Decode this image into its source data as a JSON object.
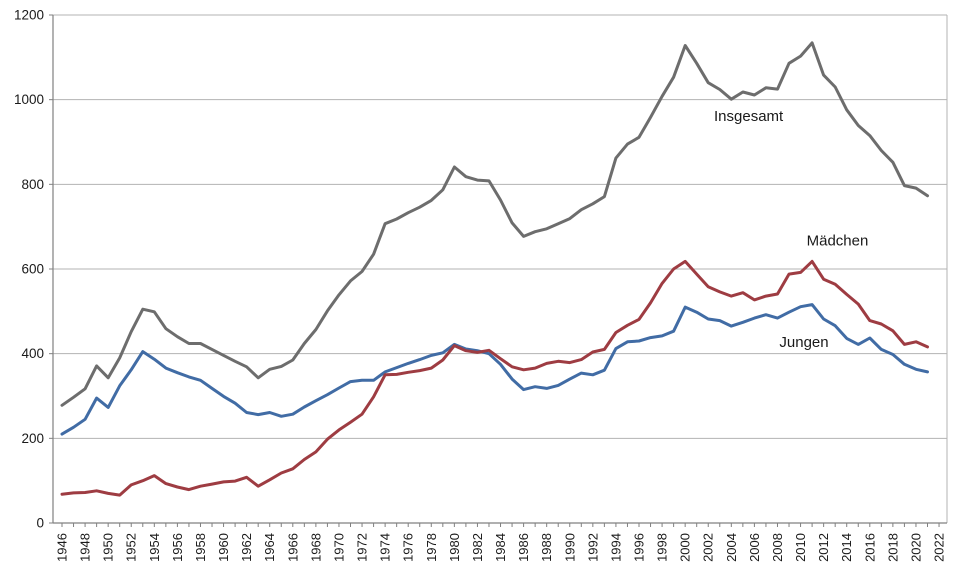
{
  "chart_data": {
    "type": "line",
    "title": "",
    "xlabel": "",
    "ylabel": "",
    "grid": "horizontal",
    "legend_position": "inline-annotations",
    "ylim": [
      0,
      1200
    ],
    "yticks": [
      0,
      200,
      400,
      600,
      800,
      1000,
      1200
    ],
    "xlim": [
      1945.2,
      2022.7
    ],
    "xticks": [
      1946,
      1948,
      1950,
      1952,
      1954,
      1956,
      1958,
      1960,
      1962,
      1964,
      1966,
      1968,
      1970,
      1972,
      1974,
      1976,
      1978,
      1980,
      1982,
      1984,
      1986,
      1988,
      1990,
      1992,
      1994,
      1996,
      1998,
      2000,
      2002,
      2004,
      2006,
      2008,
      2010,
      2012,
      2014,
      2016,
      2018,
      2020,
      2022
    ],
    "x": [
      1946,
      1947,
      1948,
      1949,
      1950,
      1951,
      1952,
      1953,
      1954,
      1955,
      1956,
      1957,
      1958,
      1959,
      1960,
      1961,
      1962,
      1963,
      1964,
      1965,
      1966,
      1967,
      1968,
      1969,
      1970,
      1971,
      1972,
      1973,
      1974,
      1975,
      1976,
      1977,
      1978,
      1979,
      1980,
      1981,
      1982,
      1983,
      1984,
      1985,
      1986,
      1987,
      1988,
      1989,
      1990,
      1991,
      1992,
      1993,
      1994,
      1995,
      1996,
      1997,
      1998,
      1999,
      2000,
      2001,
      2002,
      2003,
      2004,
      2005,
      2006,
      2007,
      2008,
      2009,
      2010,
      2011,
      2012,
      2013,
      2014,
      2015,
      2016,
      2017,
      2018,
      2019,
      2020,
      2021
    ],
    "series": [
      {
        "name": "Insgesamt",
        "color": "#6d6d6d",
        "values": [
          278,
          297,
          317,
          371,
          343,
          390,
          452,
          505,
          499,
          459,
          440,
          424,
          424,
          410,
          396,
          382,
          369,
          343,
          363,
          370,
          385,
          424,
          457,
          501,
          539,
          572,
          594,
          635,
          707,
          718,
          733,
          746,
          762,
          787,
          841,
          818,
          810,
          808,
          763,
          709,
          677,
          688,
          695,
          707,
          719,
          740,
          754,
          771,
          862,
          895,
          911,
          958,
          1008,
          1053,
          1128,
          1086,
          1040,
          1024,
          1001,
          1018,
          1011,
          1028,
          1025,
          1086,
          1103,
          1134,
          1058,
          1030,
          976,
          939,
          915,
          880,
          852,
          797,
          791,
          773
        ]
      },
      {
        "name": "Jungen",
        "color": "#416ca5",
        "values": [
          210,
          226,
          245,
          295,
          273,
          324,
          362,
          405,
          387,
          366,
          355,
          345,
          337,
          318,
          299,
          283,
          261,
          256,
          261,
          252,
          257,
          274,
          289,
          303,
          319,
          334,
          337,
          337,
          357,
          367,
          377,
          386,
          396,
          402,
          422,
          411,
          407,
          400,
          375,
          340,
          315,
          322,
          318,
          325,
          340,
          354,
          350,
          361,
          412,
          428,
          430,
          438,
          442,
          453,
          510,
          498,
          482,
          478,
          465,
          474,
          484,
          492,
          484,
          498,
          511,
          516,
          482,
          466,
          436,
          422,
          437,
          410,
          398,
          375,
          363,
          357
        ]
      },
      {
        "name": "Mädchen",
        "color": "#9e3c42",
        "values": [
          68,
          71,
          72,
          76,
          70,
          66,
          90,
          100,
          112,
          93,
          85,
          79,
          87,
          92,
          97,
          99,
          108,
          87,
          102,
          118,
          128,
          150,
          168,
          198,
          220,
          238,
          257,
          298,
          350,
          351,
          356,
          360,
          366,
          385,
          419,
          407,
          403,
          408,
          388,
          369,
          362,
          366,
          377,
          382,
          379,
          386,
          404,
          410,
          450,
          467,
          481,
          520,
          566,
          600,
          618,
          588,
          558,
          546,
          536,
          544,
          527,
          536,
          541,
          588,
          592,
          618,
          576,
          564,
          540,
          517,
          478,
          470,
          454,
          422,
          428,
          416
        ]
      }
    ],
    "annotations": [
      {
        "text": "Insgesamt",
        "x": 2005.5,
        "y": 961
      },
      {
        "text": "Mädchen",
        "x": 2013.2,
        "y": 667
      },
      {
        "text": "Jungen",
        "x": 2010.3,
        "y": 427
      }
    ]
  },
  "style": {
    "grid_color": "#b3b3b3",
    "axis_color": "#808080",
    "tick_label_color": "#1a1a1a",
    "annotation_color": "#1a1a1a",
    "background": "#ffffff"
  }
}
